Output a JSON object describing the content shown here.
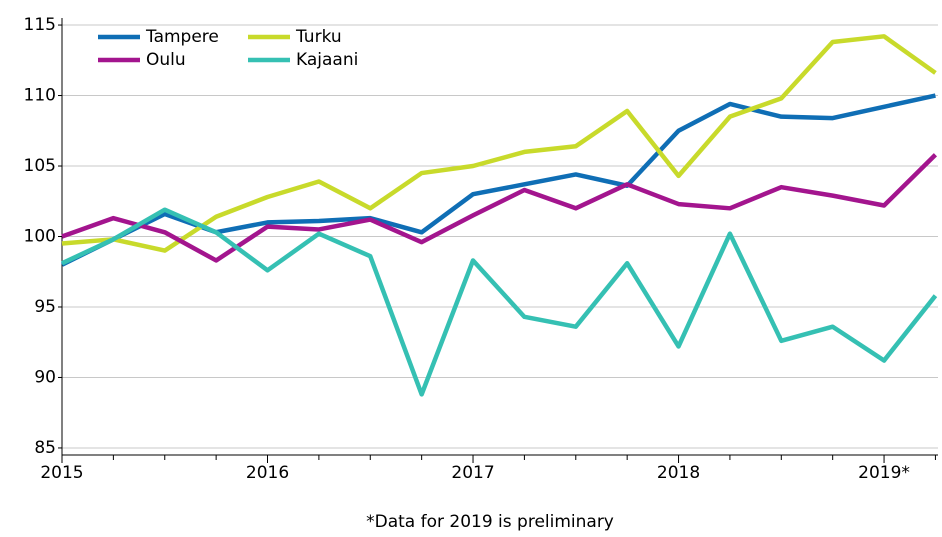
{
  "chart_data": {
    "type": "line",
    "categories": [
      "2015",
      null,
      null,
      null,
      "2016",
      null,
      null,
      null,
      "2017",
      null,
      null,
      null,
      "2018",
      null,
      null,
      null,
      "2019*",
      null
    ],
    "series": [
      {
        "name": "Tampere",
        "color": "#0f6eb5",
        "values": [
          98.0,
          99.8,
          101.6,
          100.3,
          101.0,
          101.1,
          101.3,
          100.3,
          103.0,
          103.7,
          104.4,
          103.6,
          107.5,
          109.4,
          108.5,
          108.4,
          109.2,
          110.0
        ]
      },
      {
        "name": "Turku",
        "color": "#c8da2b",
        "values": [
          99.5,
          99.8,
          99.0,
          101.4,
          102.8,
          103.9,
          102.0,
          104.5,
          105.0,
          106.0,
          106.4,
          108.9,
          104.3,
          108.5,
          109.8,
          113.8,
          114.2,
          111.6
        ]
      },
      {
        "name": "Oulu",
        "color": "#a3158e",
        "values": [
          100.0,
          101.3,
          100.3,
          98.3,
          100.7,
          100.5,
          101.2,
          99.6,
          101.5,
          103.3,
          102.0,
          103.7,
          102.3,
          102.0,
          103.5,
          102.9,
          102.2,
          105.8
        ]
      },
      {
        "name": "Kajaani",
        "color": "#35c0b3",
        "values": [
          98.1,
          99.8,
          101.9,
          100.3,
          97.6,
          100.2,
          98.6,
          88.8,
          98.3,
          94.3,
          93.6,
          98.1,
          92.2,
          100.2,
          92.6,
          93.6,
          91.2,
          95.8
        ]
      }
    ],
    "ylim": [
      84.5,
      115.5
    ],
    "yticks": [
      85,
      90,
      95,
      100,
      105,
      110,
      115
    ],
    "grid": true,
    "note": "*Data for 2019 is preliminary"
  }
}
